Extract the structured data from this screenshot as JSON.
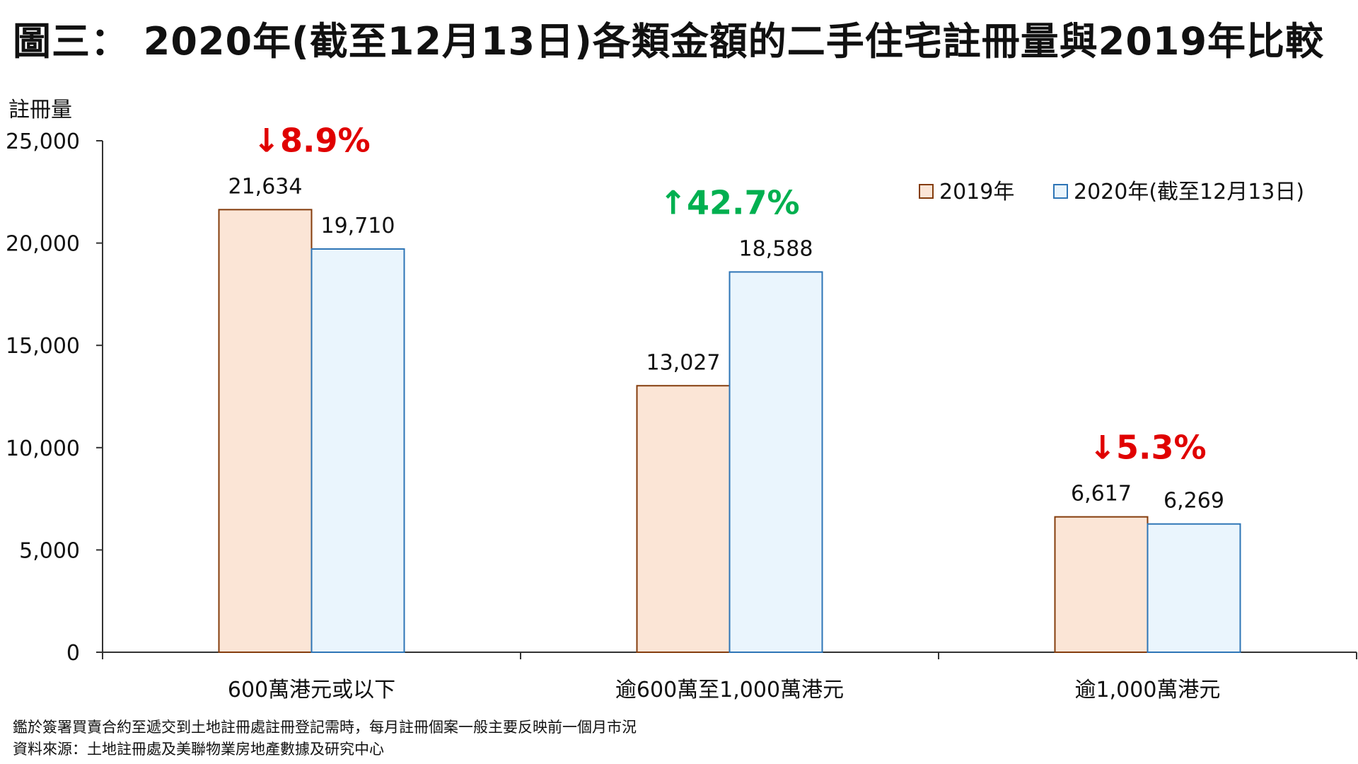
{
  "header": {
    "title": "圖三： 2020年(截至12月13日)各類金額的二手住宅註冊量與2019年比較"
  },
  "chart_data": {
    "type": "bar",
    "ylabel": "註冊量",
    "ylim": [
      0,
      25000
    ],
    "yticks": [
      0,
      5000,
      10000,
      15000,
      20000,
      25000
    ],
    "ytick_labels": [
      "0",
      "5,000",
      "10,000",
      "15,000",
      "20,000",
      "25,000"
    ],
    "categories": [
      "600萬港元或以下",
      "逾600萬至1,000萬港元",
      "逾1,000萬港元"
    ],
    "series": [
      {
        "name": "2019年",
        "values": [
          21634,
          13027,
          6617
        ],
        "labels": [
          "21,634",
          "13,027",
          "6,617"
        ],
        "fill": "#fbe5d6",
        "stroke": "#843c0c"
      },
      {
        "name": "2020年(截至12月13日)",
        "values": [
          19710,
          18588,
          6269
        ],
        "labels": [
          "19,710",
          "18,588",
          "6,269"
        ],
        "fill": "#eaf5fd",
        "stroke": "#2e75b6"
      }
    ],
    "annotations": [
      {
        "text": "↓8.9%",
        "color": "#e00000"
      },
      {
        "text": "↑42.7%",
        "color": "#00b050"
      },
      {
        "text": "↓5.3%",
        "color": "#e00000"
      }
    ],
    "legend_position": "top-right",
    "grid": false
  },
  "notes": {
    "line1": "鑑於簽署買賣合約至遞交到土地註冊處註冊登記需時，每月註冊個案一般主要反映前一個月市況",
    "line2": "資料來源：土地註冊處及美聯物業房地產數據及研究中心"
  }
}
